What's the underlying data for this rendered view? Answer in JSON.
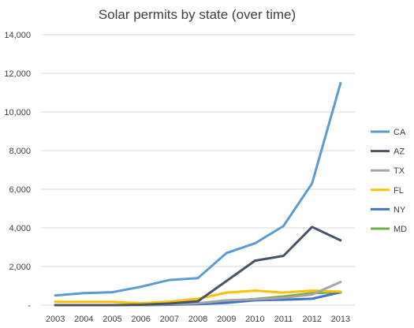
{
  "chart_data": {
    "type": "line",
    "title": "Solar permits by state (over time)",
    "xlabel": "",
    "ylabel": "",
    "x": [
      "2003",
      "2004",
      "2005",
      "2006",
      "2007",
      "2008",
      "2009",
      "2010",
      "2011",
      "2012",
      "2013"
    ],
    "ylim": [
      0,
      14000
    ],
    "yticks": [
      0,
      2000,
      4000,
      6000,
      8000,
      10000,
      12000,
      14000
    ],
    "ytick_labels": [
      "-",
      "2,000",
      "4,000",
      "6,000",
      "8,000",
      "10,000",
      "12,000",
      "14,000"
    ],
    "grid": "horizontal",
    "legend_position": "right",
    "series": [
      {
        "name": "CA",
        "color": "#5B9BD5",
        "values": [
          500,
          620,
          670,
          950,
          1300,
          1400,
          2700,
          3200,
          4100,
          6300,
          11500
        ]
      },
      {
        "name": "AZ",
        "color": "#44546A",
        "values": [
          0,
          0,
          0,
          20,
          80,
          200,
          1250,
          2300,
          2550,
          4050,
          3350
        ]
      },
      {
        "name": "TX",
        "color": "#A5A5A5",
        "values": [
          0,
          0,
          0,
          0,
          50,
          100,
          250,
          300,
          380,
          550,
          1200
        ]
      },
      {
        "name": "FL",
        "color": "#FFC000",
        "values": [
          170,
          170,
          170,
          100,
          180,
          330,
          650,
          750,
          650,
          750,
          700
        ]
      },
      {
        "name": "NY",
        "color": "#4472C4",
        "values": [
          0,
          0,
          0,
          0,
          20,
          50,
          120,
          250,
          280,
          330,
          660
        ]
      },
      {
        "name": "MD",
        "color": "#70AD47",
        "values": [
          0,
          0,
          0,
          0,
          20,
          80,
          220,
          320,
          450,
          620,
          660
        ]
      }
    ]
  }
}
